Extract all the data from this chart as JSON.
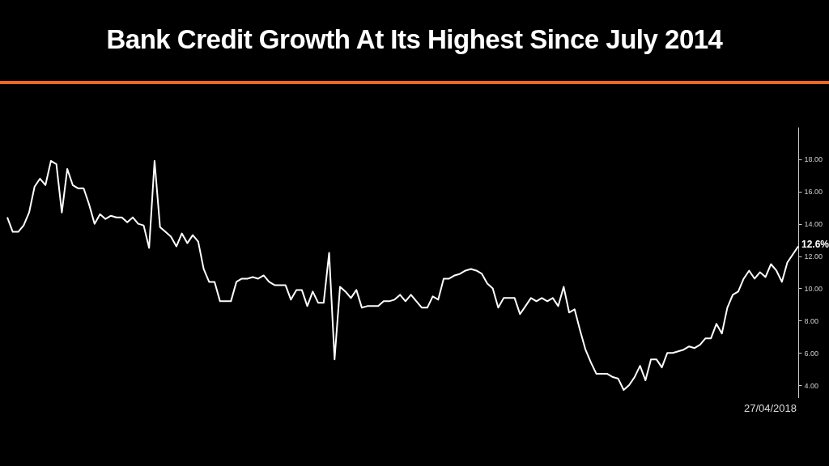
{
  "chart_data": {
    "type": "line",
    "title": "Bank Credit Growth At Its Highest Since July 2014",
    "annotations": [
      "27/04/2018",
      "12.6%"
    ],
    "categories": [
      null,
      null,
      null,
      null,
      null,
      null,
      null,
      null,
      null,
      null,
      null,
      null,
      null,
      null,
      null,
      null,
      null,
      null,
      null,
      null,
      null,
      null,
      null,
      null,
      null,
      null,
      null,
      null,
      null,
      null,
      null,
      null,
      null,
      null,
      null,
      null,
      null,
      null,
      null,
      null,
      null,
      null,
      null,
      null,
      null,
      null,
      null,
      null,
      null,
      null,
      null,
      null,
      null,
      null,
      null,
      null,
      null,
      null,
      null,
      null,
      null,
      null,
      null,
      null,
      null,
      null,
      null,
      null,
      null,
      null,
      null,
      null,
      null,
      null,
      null,
      null,
      null,
      null,
      null,
      null,
      null,
      null,
      null,
      null,
      null,
      null,
      null,
      null,
      null,
      null,
      null,
      null,
      null,
      null,
      null,
      null,
      null,
      null,
      null,
      null,
      null,
      null,
      null,
      null,
      null,
      null,
      null,
      null,
      null,
      null,
      null,
      null,
      null,
      null,
      null,
      null,
      null,
      null,
      null,
      null,
      null,
      null,
      null,
      null,
      null,
      null,
      null,
      null,
      null,
      null,
      null,
      null,
      null,
      null,
      null,
      null,
      null,
      null,
      null,
      null,
      null,
      null,
      null,
      null,
      null,
      null
    ],
    "series": [
      {
        "color": "#ffffff",
        "values": [
          14.4,
          13.5,
          13.5,
          13.9,
          14.7,
          16.3,
          16.8,
          16.4,
          17.9,
          17.7,
          14.7,
          17.4,
          16.4,
          16.2,
          16.2,
          15.2,
          14.0,
          14.6,
          14.3,
          14.5,
          14.4,
          14.4,
          14.1,
          14.4,
          14.0,
          13.9,
          12.5,
          17.9,
          13.8,
          13.5,
          13.2,
          12.6,
          13.4,
          12.8,
          13.3,
          12.9,
          11.2,
          10.4,
          10.4,
          9.2,
          9.2,
          9.2,
          10.4,
          10.6,
          10.6,
          10.7,
          10.6,
          10.8,
          10.4,
          10.2,
          10.2,
          10.2,
          9.3,
          9.9,
          9.9,
          8.9,
          9.8,
          9.1,
          9.1,
          12.2,
          5.6,
          10.1,
          9.8,
          9.4,
          9.9,
          8.8,
          8.9,
          8.9,
          8.9,
          9.2,
          9.2,
          9.3,
          9.6,
          9.2,
          9.6,
          9.2,
          8.8,
          8.8,
          9.5,
          9.3,
          10.6,
          10.6,
          10.8,
          10.9,
          11.1,
          11.2,
          11.1,
          10.9,
          10.3,
          10.0,
          8.8,
          9.4,
          9.4,
          9.4,
          8.4,
          8.9,
          9.4,
          9.2,
          9.4,
          9.2,
          9.4,
          8.9,
          10.1,
          8.5,
          8.7,
          7.4,
          6.2,
          5.4,
          4.7,
          4.7,
          4.7,
          4.5,
          4.4,
          3.7,
          4.0,
          4.5,
          5.2,
          4.3,
          5.6,
          5.6,
          5.1,
          6.0,
          6.0,
          6.1,
          6.2,
          6.4,
          6.3,
          6.5,
          6.9,
          6.9,
          7.8,
          7.2,
          8.8,
          9.6,
          9.8,
          10.6,
          11.1,
          10.6,
          11.0,
          10.7,
          11.5,
          11.1,
          10.4,
          11.6,
          12.1,
          12.6
        ]
      }
    ],
    "ylim": [
      3.2,
      20
    ],
    "yticks": [
      {
        "value": 4,
        "label": "4.00"
      },
      {
        "value": 6,
        "label": "6.00"
      },
      {
        "value": 8,
        "label": "8.00"
      },
      {
        "value": 10,
        "label": "10.00"
      },
      {
        "value": 12,
        "label": "12.00"
      },
      {
        "value": 14,
        "label": "14.00"
      },
      {
        "value": 16,
        "label": "16.00"
      },
      {
        "value": 18,
        "label": "18.00"
      }
    ],
    "tick_labels": "y"
  }
}
